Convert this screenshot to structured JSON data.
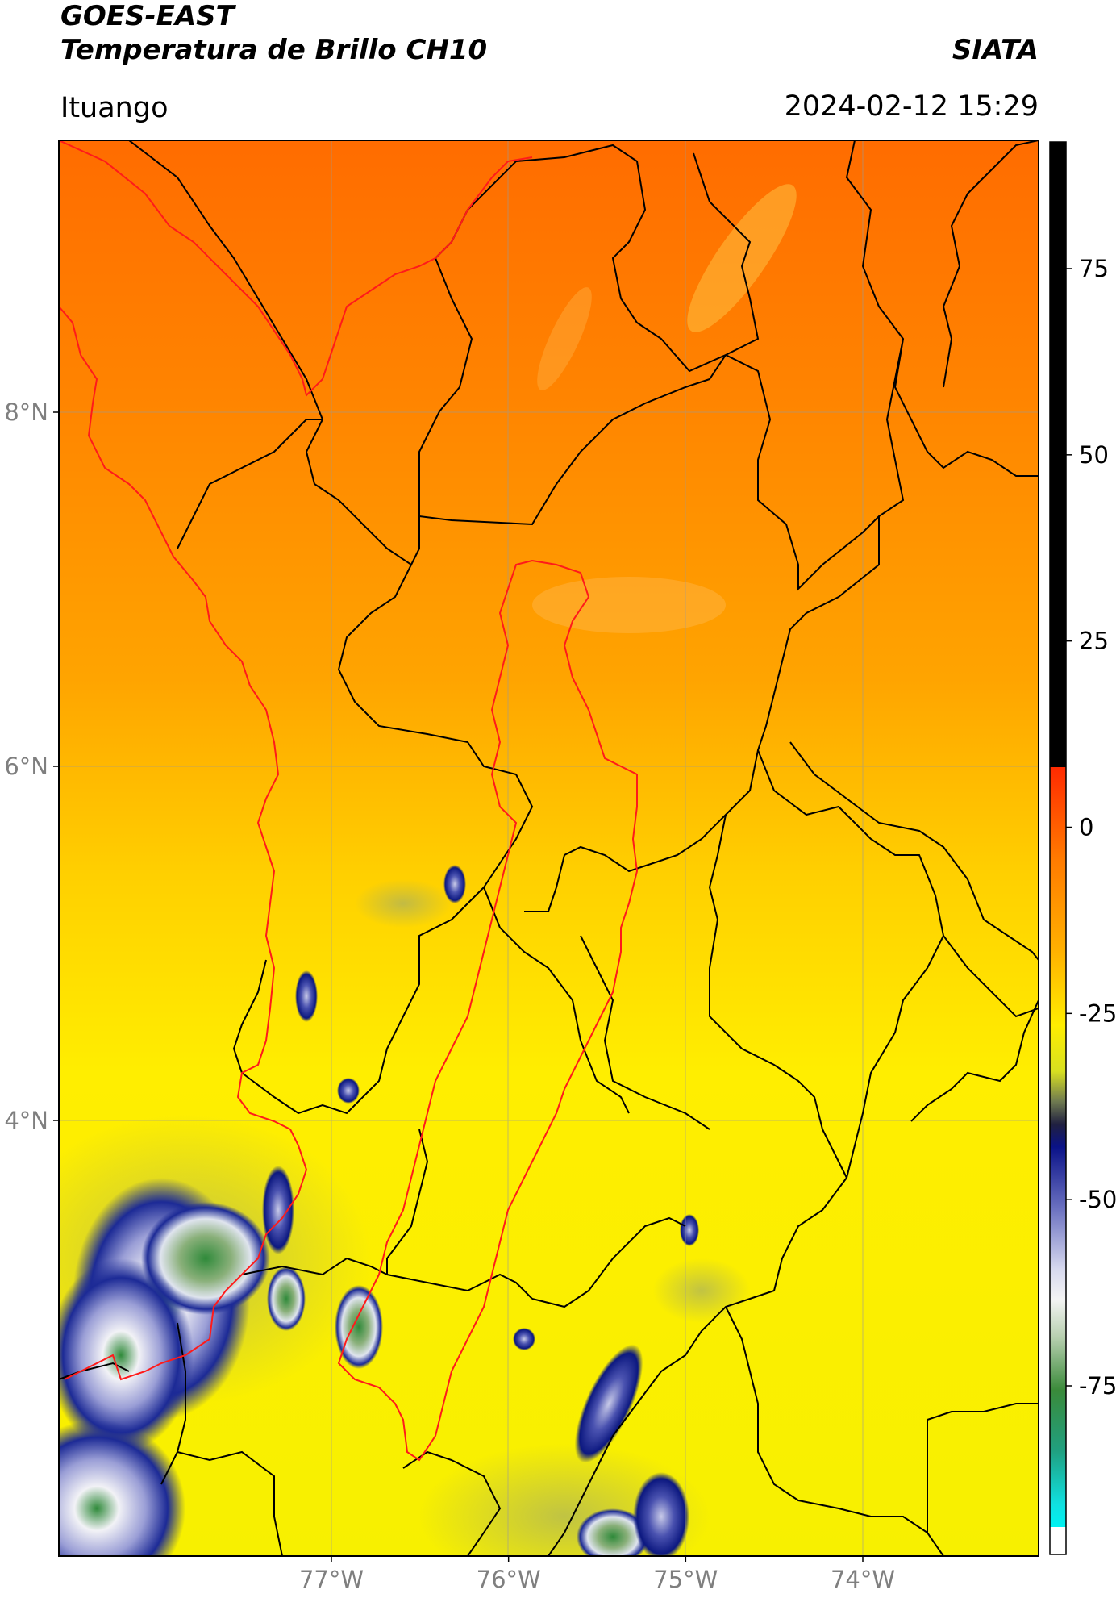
{
  "header": {
    "title_line1": "GOES-EAST",
    "title_line2": "Temperatura de Brillo CH10",
    "organization": "SIATA",
    "location": "Ituango",
    "timestamp": "2024-02-12 15:29"
  },
  "map": {
    "lat_ticks": [
      {
        "value": 8,
        "label": "8°N"
      },
      {
        "value": 6,
        "label": "6°N"
      },
      {
        "value": 4,
        "label": "4°N"
      }
    ],
    "lon_ticks": [
      {
        "value": -77,
        "label": "77°W"
      },
      {
        "value": -76,
        "label": "76°W"
      },
      {
        "value": -75,
        "label": "75°W"
      },
      {
        "value": -74,
        "label": "74°W"
      }
    ],
    "colors": {
      "warm_top": "#ff6a00",
      "mid": "#ffa800",
      "bottom": "#ffee00",
      "cold_blue": "#0a1a80",
      "cold_white": "#f0f0f5",
      "cold_green": "#2f8a3a",
      "borders": "#000000",
      "region_outline": "#ff0000"
    }
  },
  "colorbar": {
    "ticks": [
      {
        "value": 75,
        "label": "75"
      },
      {
        "value": 50,
        "label": "50"
      },
      {
        "value": 25,
        "label": "25"
      },
      {
        "value": 0,
        "label": "0"
      },
      {
        "value": -25,
        "label": "-25"
      },
      {
        "value": -50,
        "label": "-50"
      },
      {
        "value": -75,
        "label": "-75"
      }
    ]
  }
}
